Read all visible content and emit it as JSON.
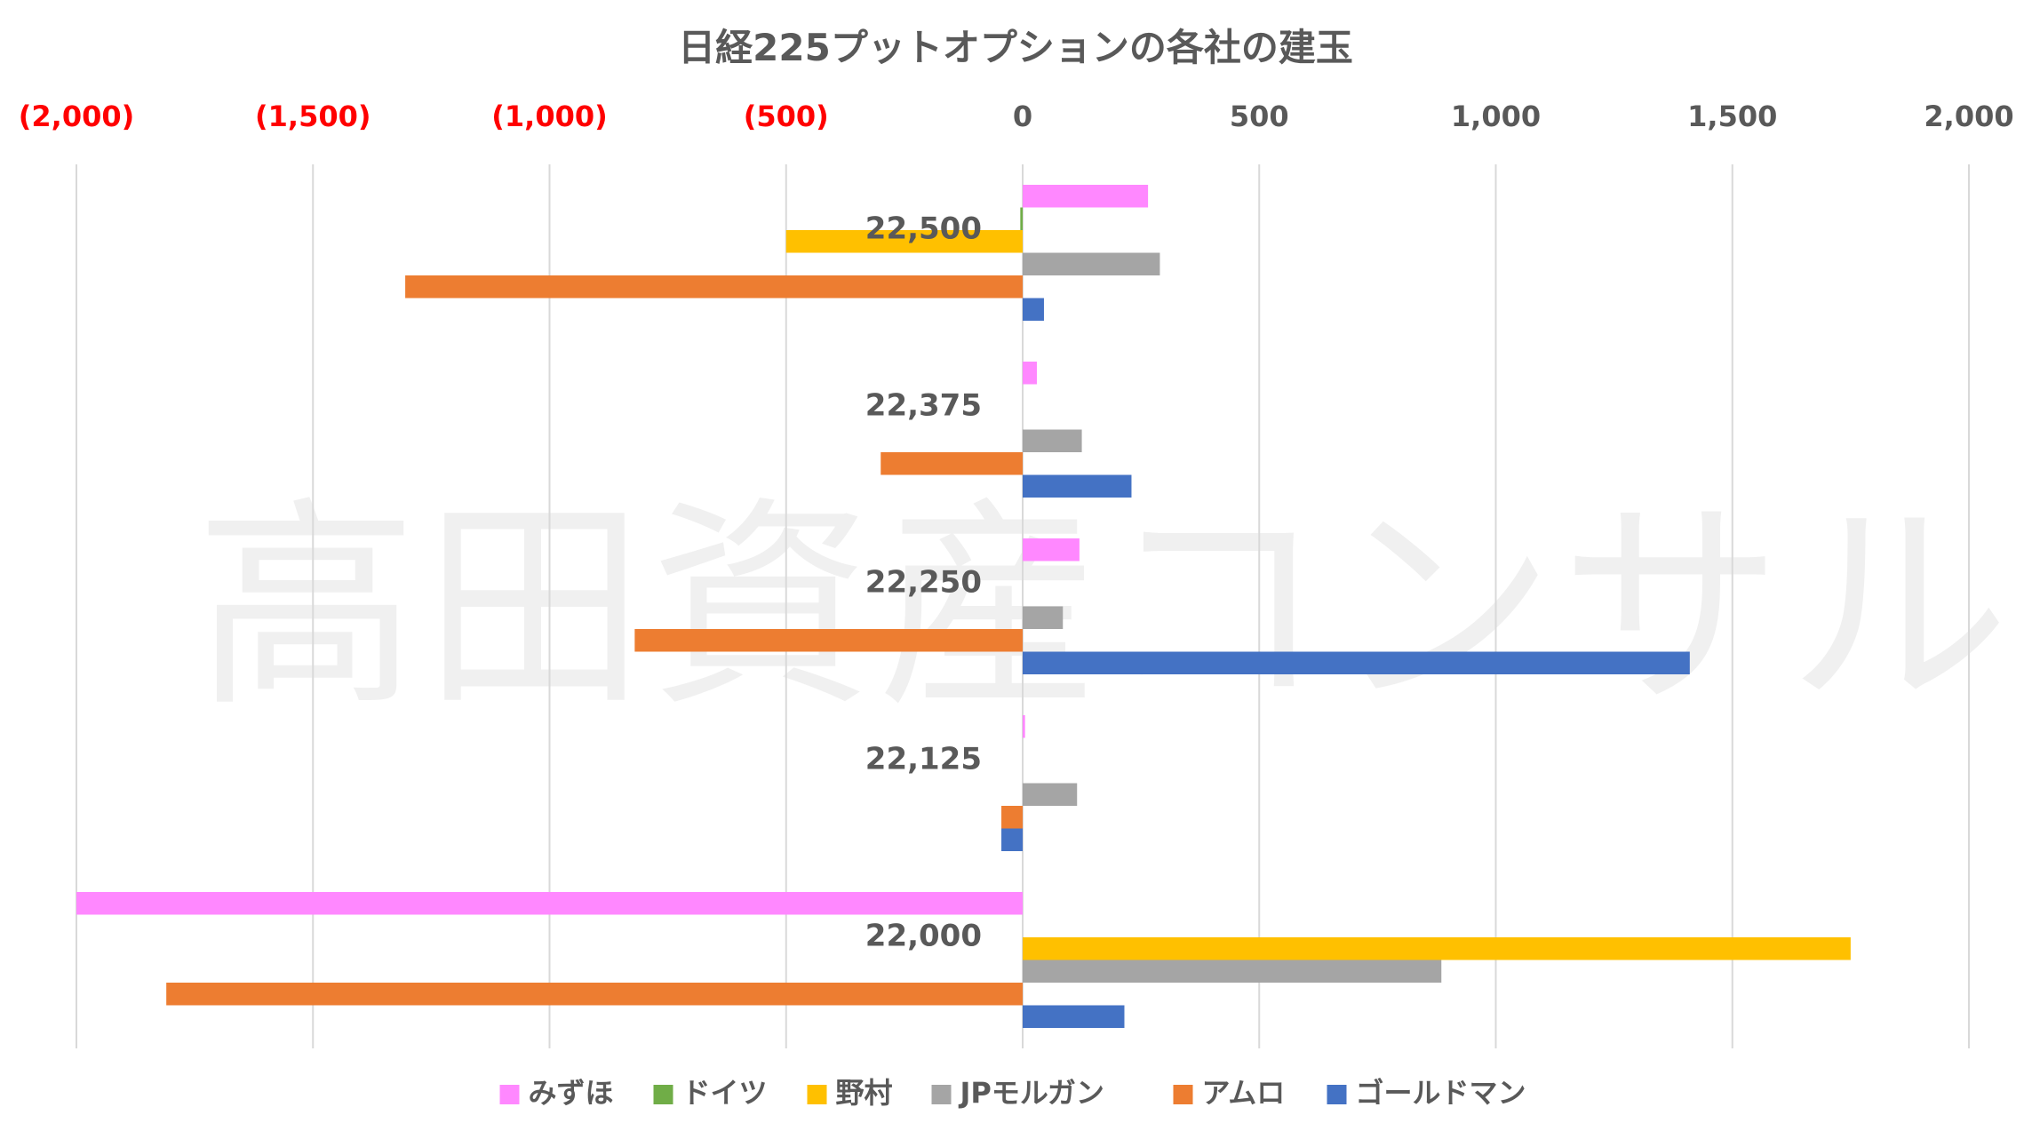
{
  "chart_data": {
    "type": "bar",
    "orientation": "horizontal",
    "title": "日経225プットオプションの各社の建玉",
    "watermark": "高田資産コンサル",
    "xlim": [
      -2000,
      2000
    ],
    "x_ticks": [
      {
        "value": -2000,
        "label": "(2,000)",
        "color": "#FF0000"
      },
      {
        "value": -1500,
        "label": "(1,500)",
        "color": "#FF0000"
      },
      {
        "value": -1000,
        "label": "(1,000)",
        "color": "#FF0000"
      },
      {
        "value": -500,
        "label": "(500)",
        "color": "#FF0000"
      },
      {
        "value": 0,
        "label": "0",
        "color": "#595959"
      },
      {
        "value": 500,
        "label": "500",
        "color": "#595959"
      },
      {
        "value": 1000,
        "label": "1,000",
        "color": "#595959"
      },
      {
        "value": 1500,
        "label": "1,500",
        "color": "#595959"
      },
      {
        "value": 2000,
        "label": "2,000",
        "color": "#595959"
      }
    ],
    "grid": "vertical",
    "legend_position": "bottom",
    "categories": [
      "22,500",
      "22,375",
      "22,250",
      "22,125",
      "22,000"
    ],
    "series": [
      {
        "name": "みずほ",
        "color": "#FF88FF",
        "values": [
          265,
          30,
          120,
          5,
          -2000
        ]
      },
      {
        "name": "ドイツ",
        "color": "#70AD47",
        "values": [
          -5,
          0,
          0,
          0,
          0
        ]
      },
      {
        "name": "野村",
        "color": "#FFC000",
        "values": [
          -500,
          0,
          0,
          0,
          1750
        ]
      },
      {
        "name": "JPモルガン",
        "color": "#A5A5A5",
        "values": [
          290,
          125,
          85,
          115,
          885
        ]
      },
      {
        "name": "アムロ",
        "color": "#ED7D31",
        "values": [
          -1305,
          -300,
          -820,
          -45,
          -1810
        ]
      },
      {
        "name": "ゴールドマン",
        "color": "#4472C4",
        "values": [
          45,
          230,
          1410,
          -45,
          215
        ]
      }
    ]
  }
}
